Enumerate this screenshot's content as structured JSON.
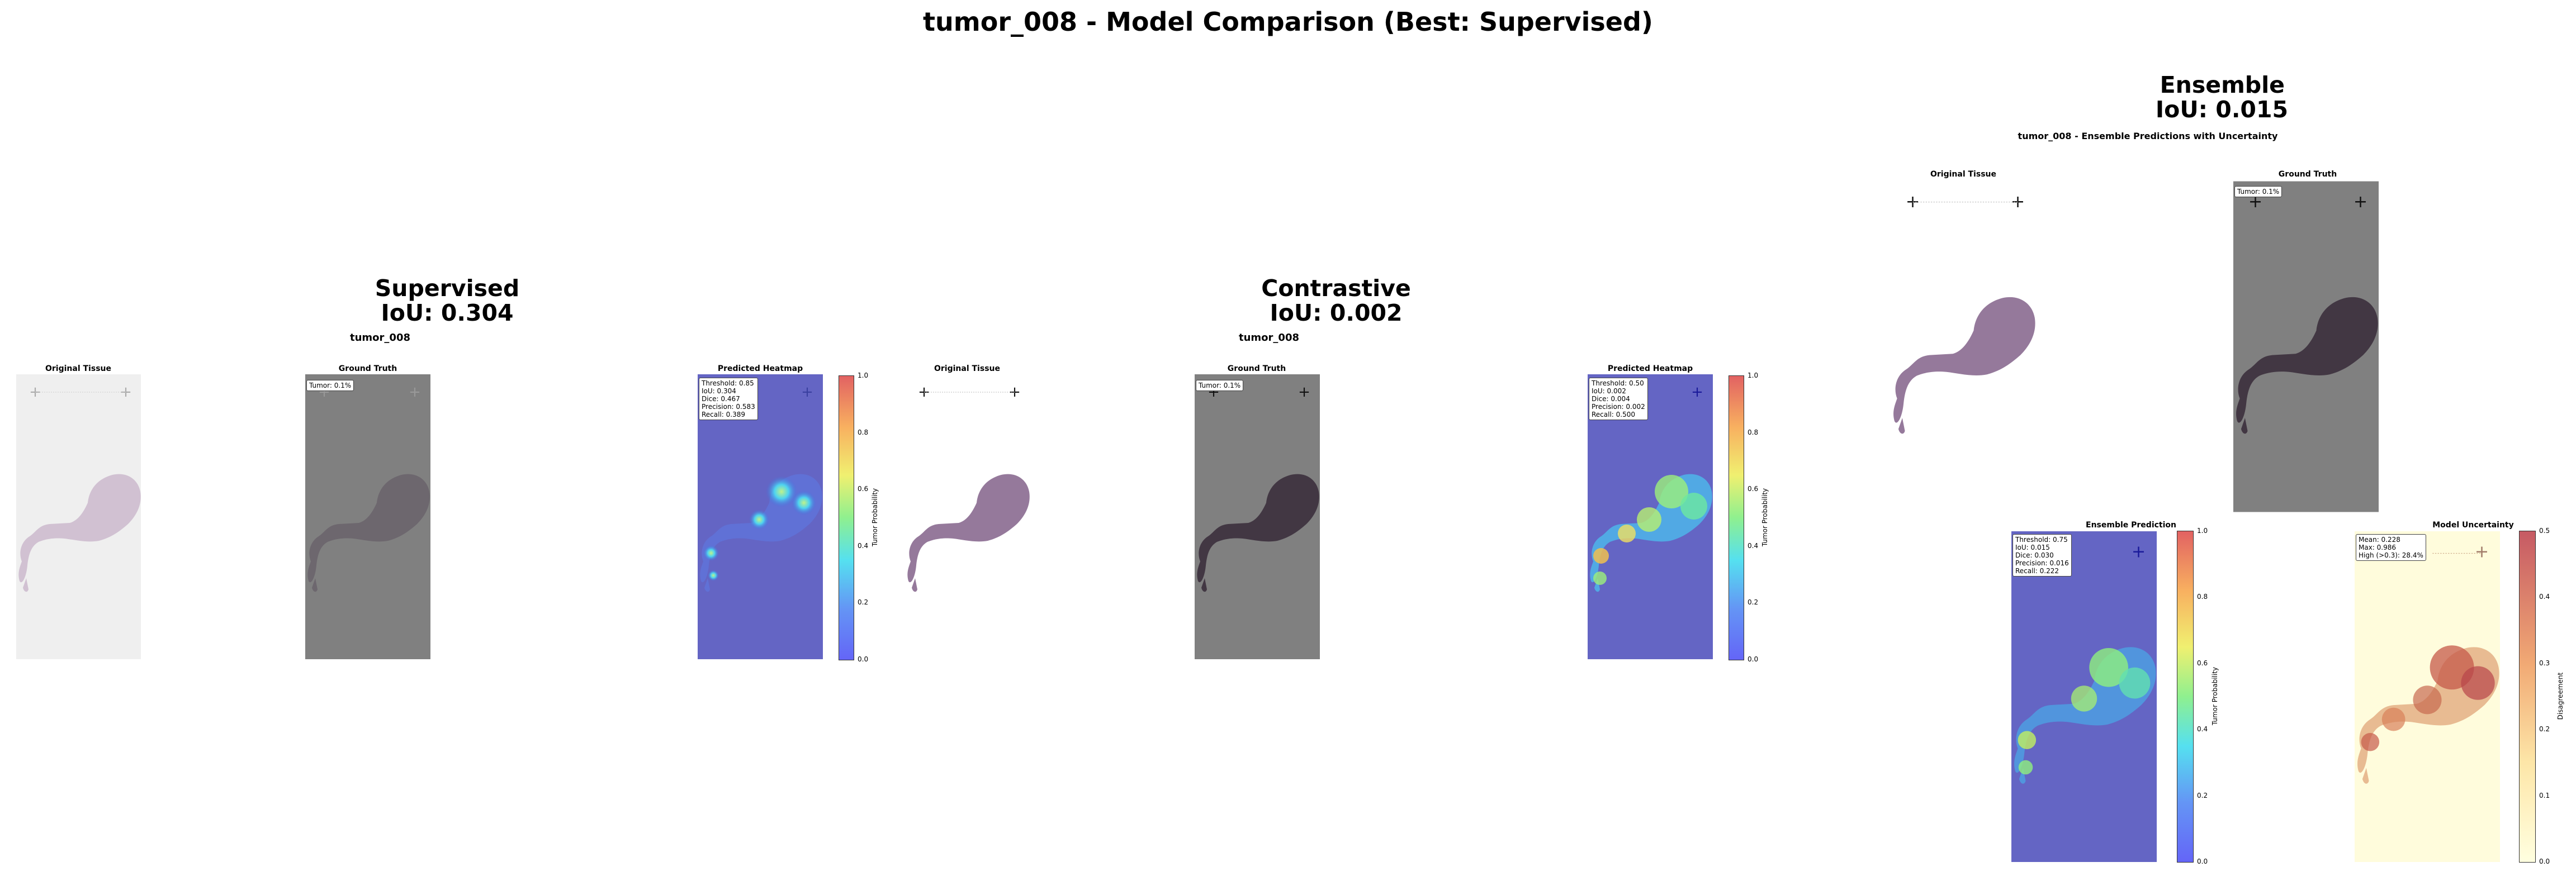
{
  "suptitle": "tumor_008 - Model Comparison (Best: Supervised)",
  "models": {
    "supervised": {
      "name": "Supervised",
      "iou_line": "IoU: 0.304",
      "case": "tumor_008",
      "panels": {
        "original": "Original Tissue",
        "ground_truth": "Ground Truth",
        "heatmap": "Predicted Heatmap"
      },
      "gt_label": "Tumor: 0.1%",
      "metrics": [
        "Threshold: 0.85",
        "IoU: 0.304",
        "Dice: 0.467",
        "Precision: 0.583",
        "Recall: 0.389"
      ]
    },
    "contrastive": {
      "name": "Contrastive",
      "iou_line": "IoU: 0.002",
      "case": "tumor_008",
      "panels": {
        "original": "Original Tissue",
        "ground_truth": "Ground Truth",
        "heatmap": "Predicted Heatmap"
      },
      "gt_label": "Tumor: 0.1%",
      "metrics": [
        "Threshold: 0.50",
        "IoU: 0.002",
        "Dice: 0.004",
        "Precision: 0.002",
        "Recall: 0.500"
      ]
    },
    "ensemble": {
      "name": "Ensemble",
      "iou_line": "IoU: 0.015",
      "subtitle": "tumor_008 - Ensemble Predictions with Uncertainty",
      "panels": {
        "original": "Original Tissue",
        "ground_truth": "Ground Truth",
        "prediction": "Ensemble Prediction",
        "uncertainty": "Model Uncertainty"
      },
      "gt_label": "Tumor: 0.1%",
      "metrics": [
        "Threshold: 0.75",
        "IoU: 0.015",
        "Dice: 0.030",
        "Precision: 0.016",
        "Recall: 0.222"
      ],
      "uncertainty_metrics": [
        "Mean: 0.228",
        "Max: 0.986",
        "High (>0.3): 28.4%"
      ]
    }
  },
  "colorbars": {
    "probability": {
      "label": "Tumor Probability",
      "ticks": [
        "0.0",
        "0.2",
        "0.4",
        "0.6",
        "0.8",
        "1.0"
      ],
      "range": [
        0,
        1
      ],
      "colormap": "jet"
    },
    "uncertainty": {
      "label": "Disagreement",
      "ticks": [
        "0.0",
        "0.1",
        "0.2",
        "0.3",
        "0.4",
        "0.5"
      ],
      "range": [
        0,
        0.5
      ],
      "colormap": "YlOrRd"
    }
  },
  "chart_data": [
    {
      "type": "heatmap",
      "title": "Supervised",
      "subtitle": "tumor_008",
      "panels": [
        "Original Tissue",
        "Ground Truth",
        "Predicted Heatmap"
      ],
      "ground_truth_tumor_fraction": "0.1%",
      "threshold": 0.85,
      "iou": 0.304,
      "dice": 0.467,
      "precision": 0.583,
      "recall": 0.389,
      "colorbar": {
        "label": "Tumor Probability",
        "ylim": [
          0,
          1
        ]
      }
    },
    {
      "type": "heatmap",
      "title": "Contrastive",
      "subtitle": "tumor_008",
      "panels": [
        "Original Tissue",
        "Ground Truth",
        "Predicted Heatmap"
      ],
      "ground_truth_tumor_fraction": "0.1%",
      "threshold": 0.5,
      "iou": 0.002,
      "dice": 0.004,
      "precision": 0.002,
      "recall": 0.5,
      "colorbar": {
        "label": "Tumor Probability",
        "ylim": [
          0,
          1
        ]
      }
    },
    {
      "type": "heatmap",
      "title": "Ensemble",
      "subtitle": "tumor_008 - Ensemble Predictions with Uncertainty",
      "panels": [
        "Original Tissue",
        "Ground Truth",
        "Ensemble Prediction",
        "Model Uncertainty"
      ],
      "ground_truth_tumor_fraction": "0.1%",
      "threshold": 0.75,
      "iou": 0.015,
      "dice": 0.03,
      "precision": 0.016,
      "recall": 0.222,
      "uncertainty": {
        "mean": 0.228,
        "max": 0.986,
        "high_fraction_label": "High (>0.3): 28.4%"
      },
      "colorbars": [
        {
          "label": "Tumor Probability",
          "ylim": [
            0,
            1
          ]
        },
        {
          "label": "Disagreement",
          "ylim": [
            0,
            0.5
          ]
        }
      ]
    }
  ],
  "colors": {
    "heat_bg": "#6465c4",
    "gt_bg": "#808080",
    "orig_bg_faded": "#efefef",
    "uncert_bg": "#fffcdc",
    "tissue": "#8a6a90",
    "tissue_dark": "#3b2f3c"
  }
}
